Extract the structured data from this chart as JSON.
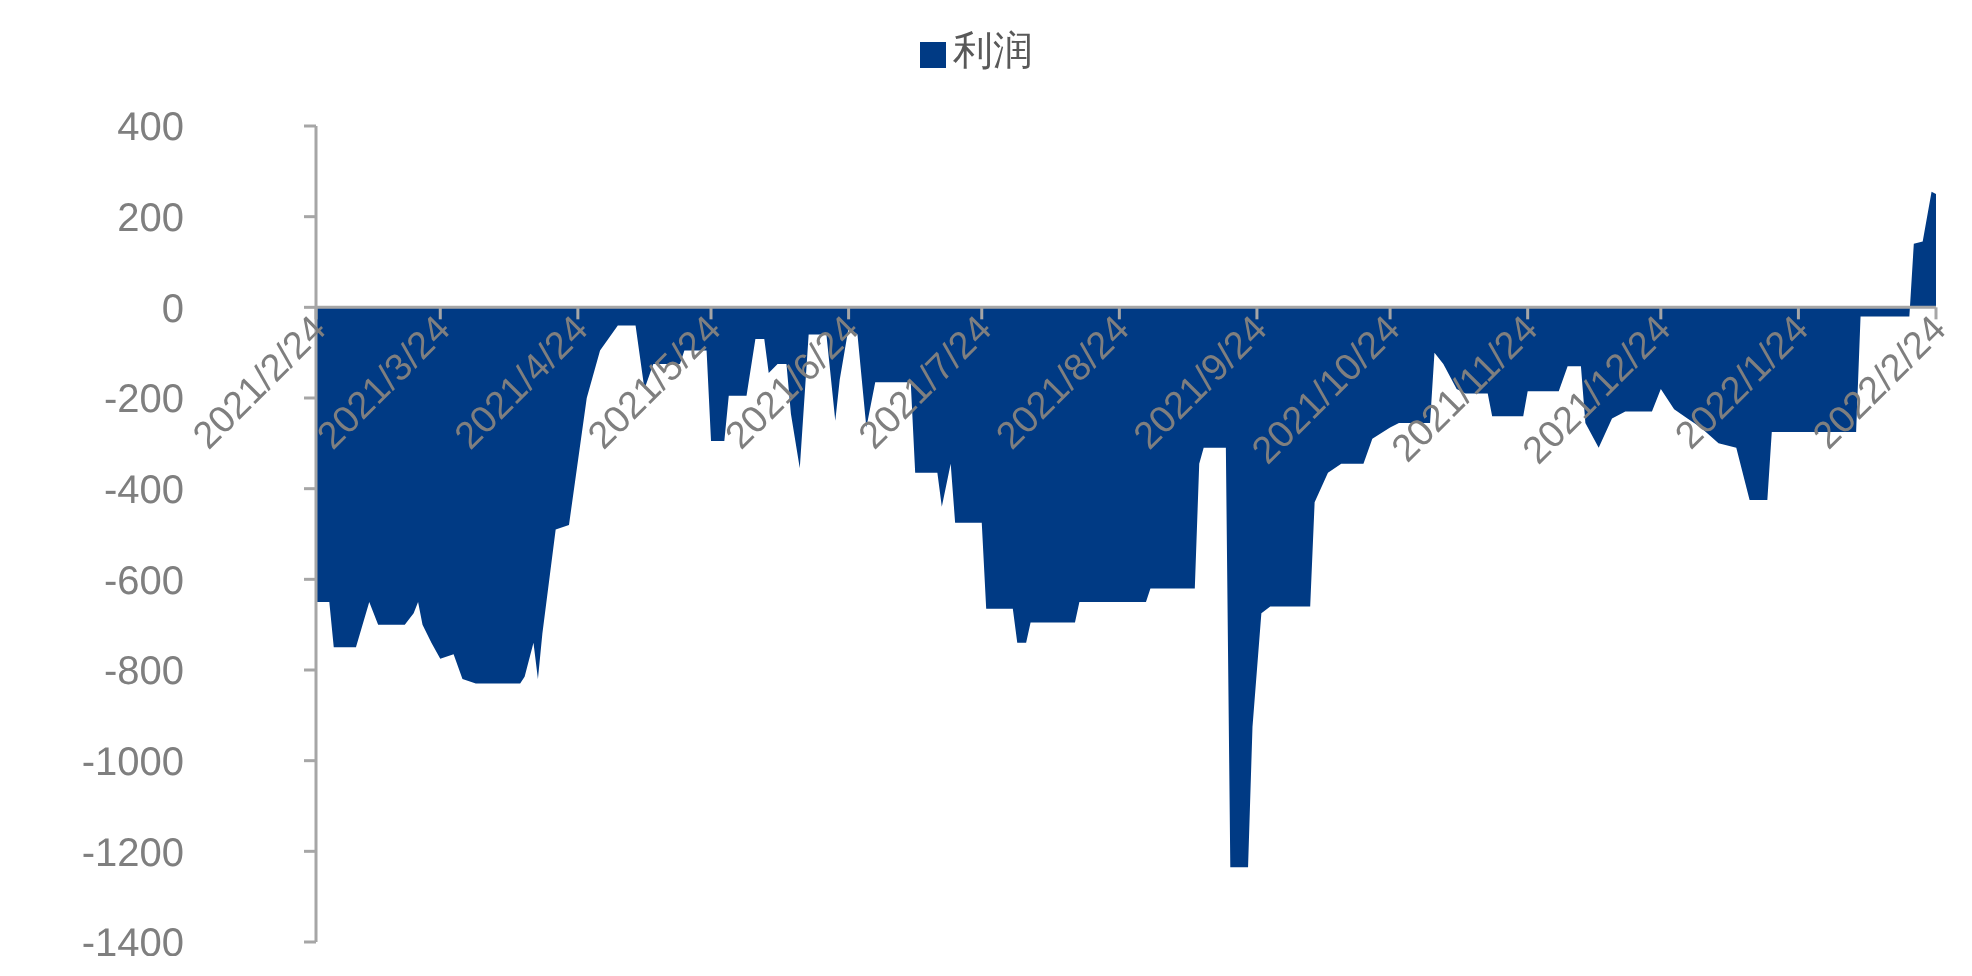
{
  "chart_data": {
    "type": "area",
    "legend": "top",
    "grid": false,
    "xlim": [
      "2021-02-24",
      "2022-02-24"
    ],
    "xticks": [
      {
        "value": "2021-02-24",
        "label": "2021/2/24"
      },
      {
        "value": "2021-03-24",
        "label": "2021/3/24"
      },
      {
        "value": "2021-04-24",
        "label": "2021/4/24"
      },
      {
        "value": "2021-05-24",
        "label": "2021/5/24"
      },
      {
        "value": "2021-06-24",
        "label": "2021/6/24"
      },
      {
        "value": "2021-07-24",
        "label": "2021/7/24"
      },
      {
        "value": "2021-08-24",
        "label": "2021/8/24"
      },
      {
        "value": "2021-09-24",
        "label": "2021/9/24"
      },
      {
        "value": "2021-10-24",
        "label": "2021/10/24"
      },
      {
        "value": "2021-11-24",
        "label": "2021/11/24"
      },
      {
        "value": "2021-12-24",
        "label": "2021/12/24"
      },
      {
        "value": "2022-01-24",
        "label": "2022/1/24"
      },
      {
        "value": "2022-02-24",
        "label": "2022/2/24"
      }
    ],
    "ylim": [
      -1400,
      400
    ],
    "yticks": [
      -1400,
      -1200,
      -1000,
      -800,
      -600,
      -400,
      -200,
      0,
      200,
      400
    ],
    "x": [
      "2021-02-24",
      "2021-02-27",
      "2021-02-28",
      "2021-03-05",
      "2021-03-08",
      "2021-03-10",
      "2021-03-16",
      "2021-03-18",
      "2021-03-19",
      "2021-03-20",
      "2021-03-22",
      "2021-03-24",
      "2021-03-27",
      "2021-03-29",
      "2021-04-01",
      "2021-04-11",
      "2021-04-12",
      "2021-04-14",
      "2021-04-15",
      "2021-04-16",
      "2021-04-19",
      "2021-04-22",
      "2021-04-26",
      "2021-04-29",
      "2021-05-03",
      "2021-05-07",
      "2021-05-09",
      "2021-05-11",
      "2021-05-17",
      "2021-05-18",
      "2021-05-23",
      "2021-05-24",
      "2021-05-27",
      "2021-05-28",
      "2021-06-01",
      "2021-06-03",
      "2021-06-05",
      "2021-06-06",
      "2021-06-08",
      "2021-06-10",
      "2021-06-11",
      "2021-06-13",
      "2021-06-15",
      "2021-06-19",
      "2021-06-21",
      "2021-06-22",
      "2021-06-24",
      "2021-06-26",
      "2021-06-28",
      "2021-06-30",
      "2021-07-08",
      "2021-07-09",
      "2021-07-14",
      "2021-07-15",
      "2021-07-17",
      "2021-07-18",
      "2021-07-24",
      "2021-07-25",
      "2021-07-31",
      "2021-08-01",
      "2021-08-03",
      "2021-08-04",
      "2021-08-14",
      "2021-08-15",
      "2021-08-30",
      "2021-08-31",
      "2021-09-10",
      "2021-09-11",
      "2021-09-12",
      "2021-09-17",
      "2021-09-18",
      "2021-09-22",
      "2021-09-23",
      "2021-09-25",
      "2021-09-27",
      "2021-10-06",
      "2021-10-07",
      "2021-10-10",
      "2021-10-13",
      "2021-10-18",
      "2021-10-20",
      "2021-10-24",
      "2021-10-26",
      "2021-11-02",
      "2021-11-03",
      "2021-11-05",
      "2021-11-08",
      "2021-11-10",
      "2021-11-15",
      "2021-11-16",
      "2021-11-23",
      "2021-11-24",
      "2021-12-01",
      "2021-12-03",
      "2021-12-06",
      "2021-12-07",
      "2021-12-10",
      "2021-12-13",
      "2021-12-16",
      "2021-12-22",
      "2021-12-24",
      "2021-12-27",
      "2021-12-30",
      "2022-01-02",
      "2022-01-06",
      "2022-01-10",
      "2022-01-13",
      "2022-01-17",
      "2022-01-18",
      "2022-02-06",
      "2022-02-07",
      "2022-02-18",
      "2022-02-19",
      "2022-02-21",
      "2022-02-23",
      "2022-02-24"
    ],
    "series": [
      {
        "name": "利润",
        "color": "#003a84",
        "values": [
          -650,
          -650,
          -750,
          -750,
          -650,
          -700,
          -700,
          -675,
          -650,
          -700,
          -740,
          -775,
          -765,
          -820,
          -830,
          -830,
          -815,
          -740,
          -820,
          -720,
          -490,
          -480,
          -200,
          -95,
          -40,
          -40,
          -180,
          -125,
          -125,
          -95,
          -95,
          -295,
          -295,
          -195,
          -195,
          -70,
          -70,
          -145,
          -125,
          -125,
          -235,
          -355,
          -60,
          -60,
          -250,
          -160,
          -45,
          -60,
          -265,
          -165,
          -165,
          -365,
          -365,
          -440,
          -345,
          -475,
          -475,
          -665,
          -665,
          -740,
          -740,
          -695,
          -695,
          -650,
          -650,
          -620,
          -620,
          -345,
          -310,
          -310,
          -1235,
          -1235,
          -925,
          -675,
          -660,
          -660,
          -430,
          -365,
          -345,
          -345,
          -290,
          -265,
          -255,
          -255,
          -100,
          -125,
          -180,
          -190,
          -190,
          -240,
          -240,
          -185,
          -185,
          -130,
          -130,
          -255,
          -310,
          -245,
          -230,
          -230,
          -180,
          -225,
          -245,
          -265,
          -300,
          -310,
          -425,
          -425,
          -275,
          -275,
          -20,
          -20,
          140,
          145,
          255,
          250
        ]
      }
    ]
  }
}
